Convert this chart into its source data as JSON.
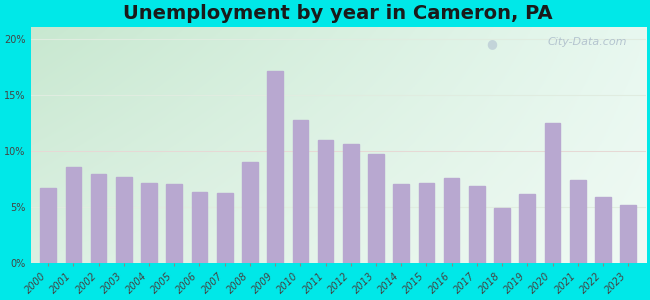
{
  "years": [
    2000,
    2001,
    2002,
    2003,
    2004,
    2005,
    2006,
    2007,
    2008,
    2009,
    2010,
    2011,
    2012,
    2013,
    2014,
    2015,
    2016,
    2017,
    2018,
    2019,
    2020,
    2021,
    2022,
    2023
  ],
  "values": [
    6.7,
    8.6,
    8.0,
    7.7,
    7.2,
    7.1,
    6.4,
    6.3,
    9.0,
    17.1,
    12.8,
    11.0,
    10.6,
    9.7,
    7.1,
    7.2,
    7.6,
    6.9,
    4.9,
    6.2,
    12.5,
    7.4,
    5.9,
    5.2
  ],
  "bar_color": "#b8a8d0",
  "title": "Unemployment by year in Cameron, PA",
  "title_fontsize": 14,
  "title_fontweight": "bold",
  "ylim": [
    0,
    21
  ],
  "yticks": [
    0,
    5,
    10,
    15,
    20
  ],
  "ytick_labels": [
    "0%",
    "5%",
    "10%",
    "15%",
    "20%"
  ],
  "outer_bg": "#00e8e8",
  "plot_bg_topleft": "#c8e8d0",
  "plot_bg_right": "#e8f5ee",
  "plot_bg_bottom": "#e0f0e4",
  "watermark_text": "City-Data.com",
  "tick_label_fontsize": 7,
  "grid_line_color": "#e0ece0",
  "highlight_line_color": "#f0c0c8"
}
